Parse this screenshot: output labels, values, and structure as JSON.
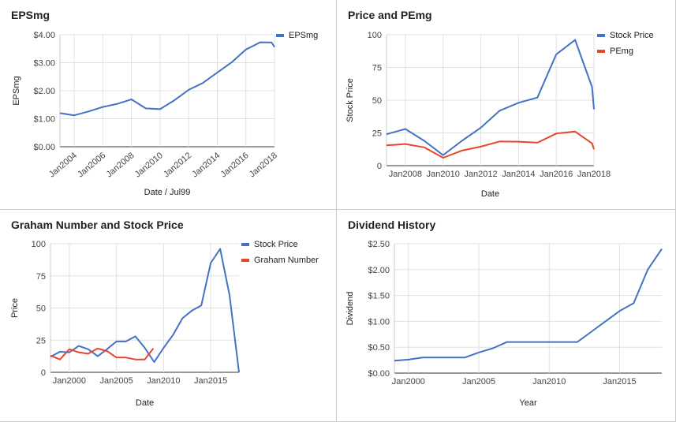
{
  "chart_data": [
    {
      "type": "line",
      "title": "EPSmg",
      "xlabel": "Date / Jul99",
      "ylabel": "EPSmg",
      "xlim": [
        2003.0,
        2018.0
      ],
      "ylim": [
        0,
        4
      ],
      "y_ticks": [
        0,
        1,
        2,
        3,
        4
      ],
      "y_tick_labels": [
        "$0.00",
        "$1.00",
        "$2.00",
        "$3.00",
        "$4.00"
      ],
      "x_ticks": [
        2004,
        2006,
        2008,
        2010,
        2012,
        2014,
        2016,
        2018
      ],
      "x_tick_labels": [
        "Jan2004",
        "Jan2006",
        "Jan2008",
        "Jan2010",
        "Jan2012",
        "Jan2014",
        "Jan2016",
        "Jan2018"
      ],
      "grid": true,
      "legend_position": "top-right",
      "series": [
        {
          "name": "EPSmg",
          "color": "#4472C4",
          "x": [
            2003.0,
            2004.0,
            2005.0,
            2006.0,
            2007.0,
            2008.0,
            2009.0,
            2010.0,
            2011.0,
            2012.0,
            2013.0,
            2014.0,
            2015.0,
            2016.0,
            2017.0,
            2017.8,
            2018.0
          ],
          "y": [
            1.2,
            1.12,
            1.26,
            1.42,
            1.53,
            1.69,
            1.37,
            1.34,
            1.66,
            2.03,
            2.28,
            2.65,
            3.01,
            3.47,
            3.73,
            3.72,
            3.56
          ]
        }
      ]
    },
    {
      "type": "line",
      "title": "Price and PEmg",
      "xlabel": "Date",
      "ylabel": "Stock Price",
      "xlim": [
        2007.0,
        2018.0
      ],
      "ylim": [
        0,
        100
      ],
      "y_ticks": [
        0,
        25,
        50,
        75,
        100
      ],
      "y_tick_labels": [
        "0",
        "25",
        "50",
        "75",
        "100"
      ],
      "x_ticks": [
        2008,
        2010,
        2012,
        2014,
        2016,
        2018
      ],
      "x_tick_labels": [
        "Jan2008",
        "Jan2010",
        "Jan2012",
        "Jan2014",
        "Jan2016",
        "Jan2018"
      ],
      "grid": true,
      "legend_position": "top-right",
      "series": [
        {
          "name": "Stock Price",
          "color": "#4472C4",
          "x": [
            2007.0,
            2008.0,
            2009.0,
            2010.0,
            2011.0,
            2012.0,
            2013.0,
            2014.0,
            2015.0,
            2016.0,
            2017.0,
            2017.9,
            2018.0
          ],
          "y": [
            24,
            28,
            19,
            8,
            19,
            29,
            42,
            48,
            52,
            85,
            96,
            60,
            43
          ]
        },
        {
          "name": "PEmg",
          "color": "#E8452C",
          "x": [
            2007.0,
            2008.0,
            2009.0,
            2010.0,
            2011.0,
            2012.0,
            2013.0,
            2014.0,
            2015.0,
            2016.0,
            2017.0,
            2017.9,
            2018.0
          ],
          "y": [
            15.5,
            16.5,
            14,
            6,
            11.5,
            14.5,
            18.5,
            18.3,
            17.5,
            24.5,
            26,
            17,
            12.5
          ]
        }
      ]
    },
    {
      "type": "line",
      "title": "Graham Number and Stock Price",
      "xlabel": "Date",
      "ylabel": "Price",
      "xlim": [
        1998.0,
        2018.0
      ],
      "ylim": [
        0,
        100
      ],
      "y_ticks": [
        0,
        25,
        50,
        75,
        100
      ],
      "y_tick_labels": [
        "0",
        "25",
        "50",
        "75",
        "100"
      ],
      "x_ticks": [
        2000,
        2005,
        2010,
        2015
      ],
      "x_tick_labels": [
        "Jan2000",
        "Jan2005",
        "Jan2010",
        "Jan2015"
      ],
      "grid": true,
      "legend_position": "top-right",
      "series": [
        {
          "name": "Stock Price",
          "color": "#4472C4",
          "x": [
            1998.0,
            1999.0,
            2000.0,
            2001.0,
            2002.0,
            2003.0,
            2004.0,
            2005.0,
            2006.0,
            2007.0,
            2008.0,
            2009.0,
            2010.0,
            2011.0,
            2012.0,
            2013.0,
            2014.0,
            2015.0,
            2016.0,
            2017.0,
            2018.0
          ],
          "y": [
            12,
            16,
            15.5,
            20.5,
            18,
            12.5,
            18,
            24,
            24,
            28,
            19,
            8,
            19,
            29,
            42,
            48,
            52,
            85,
            96,
            60,
            0
          ]
        },
        {
          "name": "Graham Number",
          "color": "#E8452C",
          "x": [
            1998.0,
            1999.0,
            2000.0,
            2001.0,
            2002.0,
            2003.0,
            2004.0,
            2005.0,
            2006.0,
            2007.0,
            2008.0,
            2008.9
          ],
          "y": [
            13,
            10,
            18,
            15.5,
            14.5,
            18.5,
            16.5,
            11.5,
            11.5,
            10,
            10,
            18.5
          ]
        }
      ]
    },
    {
      "type": "line",
      "title": "Dividend History",
      "xlabel": "Year",
      "ylabel": "Dividend",
      "xlim": [
        1999.0,
        2018.0
      ],
      "ylim": [
        0,
        2.5
      ],
      "y_ticks": [
        0,
        0.5,
        1,
        1.5,
        2,
        2.5
      ],
      "y_tick_labels": [
        "$0.00",
        "$0.50",
        "$1.00",
        "$1.50",
        "$2.00",
        "$2.50"
      ],
      "x_ticks": [
        2000,
        2005,
        2010,
        2015
      ],
      "x_tick_labels": [
        "Jan2000",
        "Jan2005",
        "Jan2010",
        "Jan2015"
      ],
      "grid": true,
      "series": [
        {
          "name": "Dividend",
          "color": "#4472C4",
          "x": [
            1999.0,
            2000.0,
            2001.0,
            2002.0,
            2003.0,
            2004.0,
            2005.0,
            2006.0,
            2007.0,
            2008.0,
            2009.0,
            2010.0,
            2011.0,
            2012.0,
            2013.0,
            2014.0,
            2015.0,
            2016.0,
            2017.0,
            2018.0
          ],
          "y": [
            0.24,
            0.26,
            0.3,
            0.3,
            0.3,
            0.3,
            0.4,
            0.48,
            0.6,
            0.6,
            0.6,
            0.6,
            0.6,
            0.6,
            0.8,
            1.0,
            1.2,
            1.35,
            2.0,
            2.4
          ]
        }
      ]
    }
  ]
}
